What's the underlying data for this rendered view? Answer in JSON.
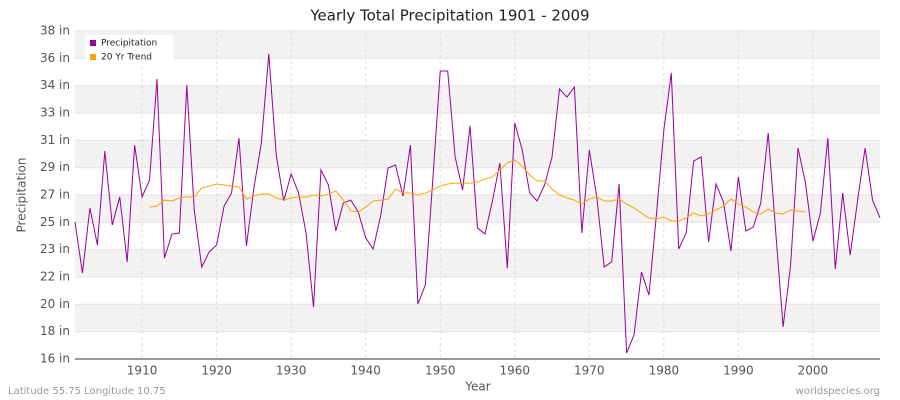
{
  "chart_data": {
    "type": "line",
    "title": "Yearly Total Precipitation 1901 - 2009",
    "x_label": "Year",
    "y_label": "Precipitation",
    "footer_left": "Latitude 55.75 Longitude 10.75",
    "footer_right": "worldspecies.org",
    "legend": "top-left",
    "grid": true,
    "x": [
      1901,
      1902,
      1903,
      1904,
      1905,
      1906,
      1907,
      1908,
      1909,
      1910,
      1911,
      1912,
      1913,
      1914,
      1915,
      1916,
      1917,
      1918,
      1919,
      1920,
      1921,
      1922,
      1923,
      1924,
      1925,
      1926,
      1927,
      1928,
      1929,
      1930,
      1931,
      1932,
      1933,
      1934,
      1935,
      1936,
      1937,
      1938,
      1939,
      1940,
      1941,
      1942,
      1943,
      1944,
      1945,
      1946,
      1947,
      1948,
      1949,
      1950,
      1951,
      1952,
      1953,
      1954,
      1955,
      1956,
      1957,
      1958,
      1959,
      1960,
      1961,
      1962,
      1963,
      1964,
      1965,
      1966,
      1967,
      1968,
      1969,
      1970,
      1971,
      1972,
      1973,
      1974,
      1975,
      1976,
      1977,
      1978,
      1979,
      1980,
      1981,
      1982,
      1983,
      1984,
      1985,
      1986,
      1987,
      1988,
      1989,
      1990,
      1991,
      1992,
      1993,
      1994,
      1995,
      1996,
      1997,
      1998,
      1999,
      2000,
      2001,
      2002,
      2003,
      2004,
      2005,
      2006,
      2007,
      2008,
      2009
    ],
    "series": [
      {
        "name": "Precipitation",
        "color": "#990099",
        "values": [
          25.19,
          21.77,
          26.13,
          23.65,
          29.95,
          24.99,
          26.87,
          22.51,
          30.35,
          26.87,
          28.0,
          34.78,
          22.77,
          24.38,
          24.45,
          34.38,
          25.99,
          22.17,
          23.18,
          23.65,
          26.26,
          27.13,
          30.82,
          23.58,
          27.47,
          30.49,
          36.46,
          29.68,
          26.6,
          28.41,
          27.13,
          24.45,
          19.49,
          28.68,
          27.67,
          24.59,
          26.46,
          26.66,
          25.86,
          24.12,
          23.38,
          25.59,
          28.81,
          29.01,
          26.93,
          30.35,
          19.69,
          20.96,
          28.0,
          35.32,
          35.32,
          29.55,
          27.33,
          31.63,
          24.79,
          24.38,
          26.6,
          29.15,
          22.1,
          31.83,
          30.02,
          27.13,
          26.6,
          27.67,
          29.55,
          34.11,
          33.57,
          34.24,
          24.45,
          30.02,
          26.87,
          22.17,
          22.51,
          27.74,
          16.4,
          17.61,
          21.84,
          20.29,
          25.66,
          31.36,
          35.18,
          23.38,
          24.45,
          29.28,
          29.55,
          23.85,
          27.74,
          26.53,
          23.24,
          28.21,
          24.59,
          24.85,
          26.46,
          31.16,
          24.59,
          18.15,
          22.24,
          30.15,
          27.8,
          23.91,
          25.79,
          30.82,
          22.04,
          27.13,
          22.97,
          26.66,
          30.15,
          26.66,
          25.46
        ]
      },
      {
        "name": "20 Yr Trend",
        "color": "#ffa500",
        "values": [
          null,
          null,
          null,
          null,
          null,
          null,
          null,
          null,
          null,
          null,
          26.19,
          26.26,
          26.66,
          26.6,
          26.8,
          26.87,
          26.87,
          27.47,
          27.6,
          27.74,
          27.67,
          27.6,
          27.54,
          26.73,
          26.93,
          27.07,
          27.07,
          26.8,
          26.66,
          26.8,
          26.87,
          26.87,
          27.0,
          26.93,
          27.07,
          27.27,
          26.66,
          25.93,
          25.86,
          26.19,
          26.6,
          26.66,
          26.73,
          27.4,
          27.13,
          27.13,
          27.0,
          27.13,
          27.33,
          27.6,
          27.74,
          27.8,
          27.8,
          27.8,
          27.87,
          28.07,
          28.21,
          28.68,
          29.15,
          29.35,
          28.94,
          28.34,
          27.94,
          27.94,
          27.4,
          27.0,
          26.8,
          26.66,
          26.4,
          26.73,
          26.87,
          26.6,
          26.6,
          26.73,
          26.4,
          26.13,
          25.79,
          25.46,
          25.39,
          25.52,
          25.26,
          25.26,
          25.46,
          25.79,
          25.59,
          25.73,
          26.0,
          26.26,
          26.73,
          26.4,
          26.19,
          25.86,
          25.73,
          26.06,
          25.79,
          25.73,
          26.0,
          25.93,
          25.86,
          null,
          null,
          null,
          null,
          null,
          null,
          null,
          null,
          null,
          null
        ]
      }
    ],
    "xlim": [
      1901,
      2009
    ],
    "xticks": [
      1910,
      1920,
      1930,
      1940,
      1950,
      1960,
      1970,
      1980,
      1990,
      2000
    ],
    "ylim": [
      16,
      38
    ],
    "yticks": [
      {
        "value": 16,
        "label": "16 in"
      },
      {
        "value": 17.83,
        "label": "18 in"
      },
      {
        "value": 19.67,
        "label": "20 in"
      },
      {
        "value": 21.5,
        "label": "22 in"
      },
      {
        "value": 23.33,
        "label": "23 in"
      },
      {
        "value": 25.17,
        "label": "25 in"
      },
      {
        "value": 27,
        "label": "27 in"
      },
      {
        "value": 28.83,
        "label": "29 in"
      },
      {
        "value": 30.67,
        "label": "31 in"
      },
      {
        "value": 32.5,
        "label": "33 in"
      },
      {
        "value": 34.33,
        "label": "34 in"
      },
      {
        "value": 36.17,
        "label": "36 in"
      },
      {
        "value": 38,
        "label": "38 in"
      }
    ]
  }
}
